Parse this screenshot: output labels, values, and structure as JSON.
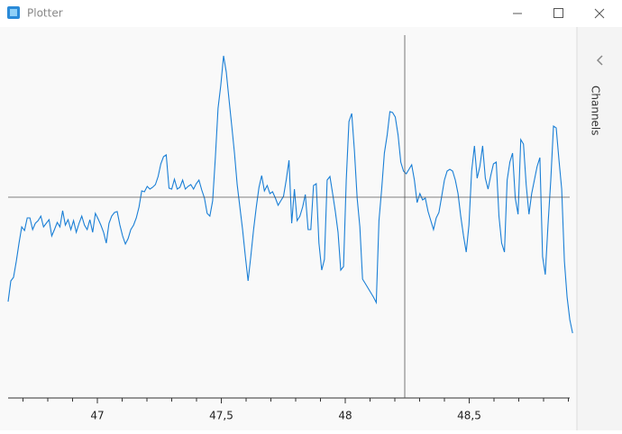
{
  "window": {
    "title": "Plotter",
    "panel_label": "Channels"
  },
  "chart_data": {
    "type": "line",
    "x": [
      46.64,
      46.651,
      46.662,
      46.673,
      46.684,
      46.695,
      46.706,
      46.717,
      46.728,
      46.739,
      46.75,
      46.761,
      46.772,
      46.783,
      46.794,
      46.805,
      46.816,
      46.827,
      46.838,
      46.849,
      46.86,
      46.871,
      46.882,
      46.893,
      46.904,
      46.915,
      46.926,
      46.937,
      46.948,
      46.959,
      46.97,
      46.981,
      46.992,
      47.003,
      47.014,
      47.025,
      47.036,
      47.047,
      47.058,
      47.069,
      47.08,
      47.091,
      47.102,
      47.113,
      47.124,
      47.135,
      47.146,
      47.157,
      47.168,
      47.179,
      47.19,
      47.201,
      47.212,
      47.223,
      47.234,
      47.245,
      47.256,
      47.267,
      47.278,
      47.289,
      47.3,
      47.311,
      47.322,
      47.333,
      47.344,
      47.355,
      47.366,
      47.377,
      47.388,
      47.399,
      47.41,
      47.421,
      47.432,
      47.443,
      47.454,
      47.465,
      47.476,
      47.487,
      47.498,
      47.509,
      47.52,
      47.531,
      47.542,
      47.553,
      47.564,
      47.575,
      47.586,
      47.597,
      47.608,
      47.619,
      47.63,
      47.641,
      47.652,
      47.663,
      47.674,
      47.685,
      47.696,
      47.707,
      47.718,
      47.729,
      47.74,
      47.751,
      47.762,
      47.773,
      47.784,
      47.795,
      47.806,
      47.817,
      47.828,
      47.839,
      47.85,
      47.861,
      47.872,
      47.883,
      47.894,
      47.905,
      47.916,
      47.927,
      47.938,
      47.949,
      47.96,
      47.971,
      47.982,
      47.993,
      48.004,
      48.015,
      48.026,
      48.037,
      48.048,
      48.059,
      48.07,
      48.081,
      48.092,
      48.103,
      48.114,
      48.125,
      48.136,
      48.147,
      48.158,
      48.169,
      48.18,
      48.191,
      48.202,
      48.213,
      48.224,
      48.235,
      48.246,
      48.257,
      48.268,
      48.279,
      48.29,
      48.301,
      48.312,
      48.323,
      48.334,
      48.345,
      48.356,
      48.367,
      48.378,
      48.389,
      48.4,
      48.411,
      48.422,
      48.433,
      48.444,
      48.455,
      48.466,
      48.477,
      48.488,
      48.499,
      48.51,
      48.521,
      48.532,
      48.543,
      48.554,
      48.565,
      48.576,
      48.587,
      48.598,
      48.609,
      48.62,
      48.631,
      48.642,
      48.653,
      48.664,
      48.675,
      48.686,
      48.697,
      48.708,
      48.719,
      48.73,
      48.741,
      48.752,
      48.763,
      48.774,
      48.785,
      48.796,
      48.807,
      48.818,
      48.829,
      48.84,
      48.851,
      48.862,
      48.873,
      48.884,
      48.895,
      48.906,
      48.917
    ],
    "series": [
      {
        "color": "#1a7fd6",
        "values": [
          -1.16,
          -0.93,
          -0.89,
          -0.71,
          -0.51,
          -0.33,
          -0.37,
          -0.23,
          -0.23,
          -0.36,
          -0.29,
          -0.26,
          -0.21,
          -0.33,
          -0.29,
          -0.25,
          -0.43,
          -0.36,
          -0.28,
          -0.33,
          -0.15,
          -0.31,
          -0.25,
          -0.36,
          -0.26,
          -0.39,
          -0.29,
          -0.21,
          -0.31,
          -0.36,
          -0.25,
          -0.39,
          -0.18,
          -0.24,
          -0.31,
          -0.39,
          -0.51,
          -0.29,
          -0.21,
          -0.17,
          -0.16,
          -0.31,
          -0.43,
          -0.52,
          -0.46,
          -0.36,
          -0.31,
          -0.23,
          -0.11,
          0.07,
          0.06,
          0.12,
          0.09,
          0.11,
          0.14,
          0.23,
          0.37,
          0.45,
          0.47,
          0.1,
          0.09,
          0.2,
          0.09,
          0.11,
          0.19,
          0.09,
          0.12,
          0.14,
          0.09,
          0.15,
          0.19,
          0.08,
          -0.01,
          -0.18,
          -0.21,
          -0.04,
          0.44,
          0.99,
          1.24,
          1.57,
          1.39,
          1.09,
          0.79,
          0.49,
          0.14,
          -0.11,
          -0.36,
          -0.66,
          -0.93,
          -0.66,
          -0.36,
          -0.11,
          0.11,
          0.24,
          0.07,
          0.13,
          0.04,
          0.06,
          -0.01,
          -0.09,
          -0.04,
          0.01,
          0.19,
          0.41,
          -0.29,
          0.09,
          -0.26,
          -0.21,
          -0.11,
          0.03,
          -0.36,
          -0.36,
          0.13,
          0.15,
          -0.51,
          -0.81,
          -0.69,
          0.19,
          0.23,
          0.04,
          -0.16,
          -0.39,
          -0.81,
          -0.77,
          0.19,
          0.84,
          0.93,
          0.51,
          -0.01,
          -0.33,
          -0.91,
          -0.96,
          -1.01,
          -1.06,
          -1.11,
          -1.17,
          -0.26,
          0.09,
          0.49,
          0.69,
          0.95,
          0.94,
          0.89,
          0.69,
          0.39,
          0.29,
          0.26,
          0.31,
          0.36,
          0.19,
          -0.06,
          0.04,
          -0.03,
          -0.01,
          -0.16,
          -0.26,
          -0.36,
          -0.23,
          -0.17,
          0.01,
          0.19,
          0.29,
          0.31,
          0.29,
          0.19,
          0.04,
          -0.21,
          -0.43,
          -0.61,
          -0.31,
          0.29,
          0.57,
          0.21,
          0.34,
          0.57,
          0.21,
          0.09,
          0.24,
          0.37,
          0.39,
          -0.21,
          -0.51,
          -0.61,
          0.19,
          0.39,
          0.49,
          -0.01,
          -0.19,
          0.64,
          0.59,
          0.14,
          -0.19,
          0.04,
          0.19,
          0.34,
          0.44,
          -0.66,
          -0.86,
          -0.31,
          0.19,
          0.79,
          0.77,
          0.41,
          0.09,
          -0.71,
          -1.11,
          -1.36,
          -1.51
        ]
      }
    ],
    "xlim": [
      46.64,
      48.92
    ],
    "ylim": [
      -2.23,
      1.8
    ],
    "xticks": [
      47,
      {
        "value": 47.5,
        "label": "47,5"
      },
      48,
      {
        "value": 48.5,
        "label": "48,5"
      }
    ],
    "xminorticks": [
      46.7,
      46.8,
      46.9,
      47.1,
      47.2,
      47.3,
      47.4,
      47.6,
      47.7,
      47.8,
      47.9,
      48.1,
      48.2,
      48.3,
      48.4,
      48.6,
      48.7,
      48.8,
      48.9
    ],
    "cursor": {
      "x": 48.24,
      "y": 0
    }
  }
}
